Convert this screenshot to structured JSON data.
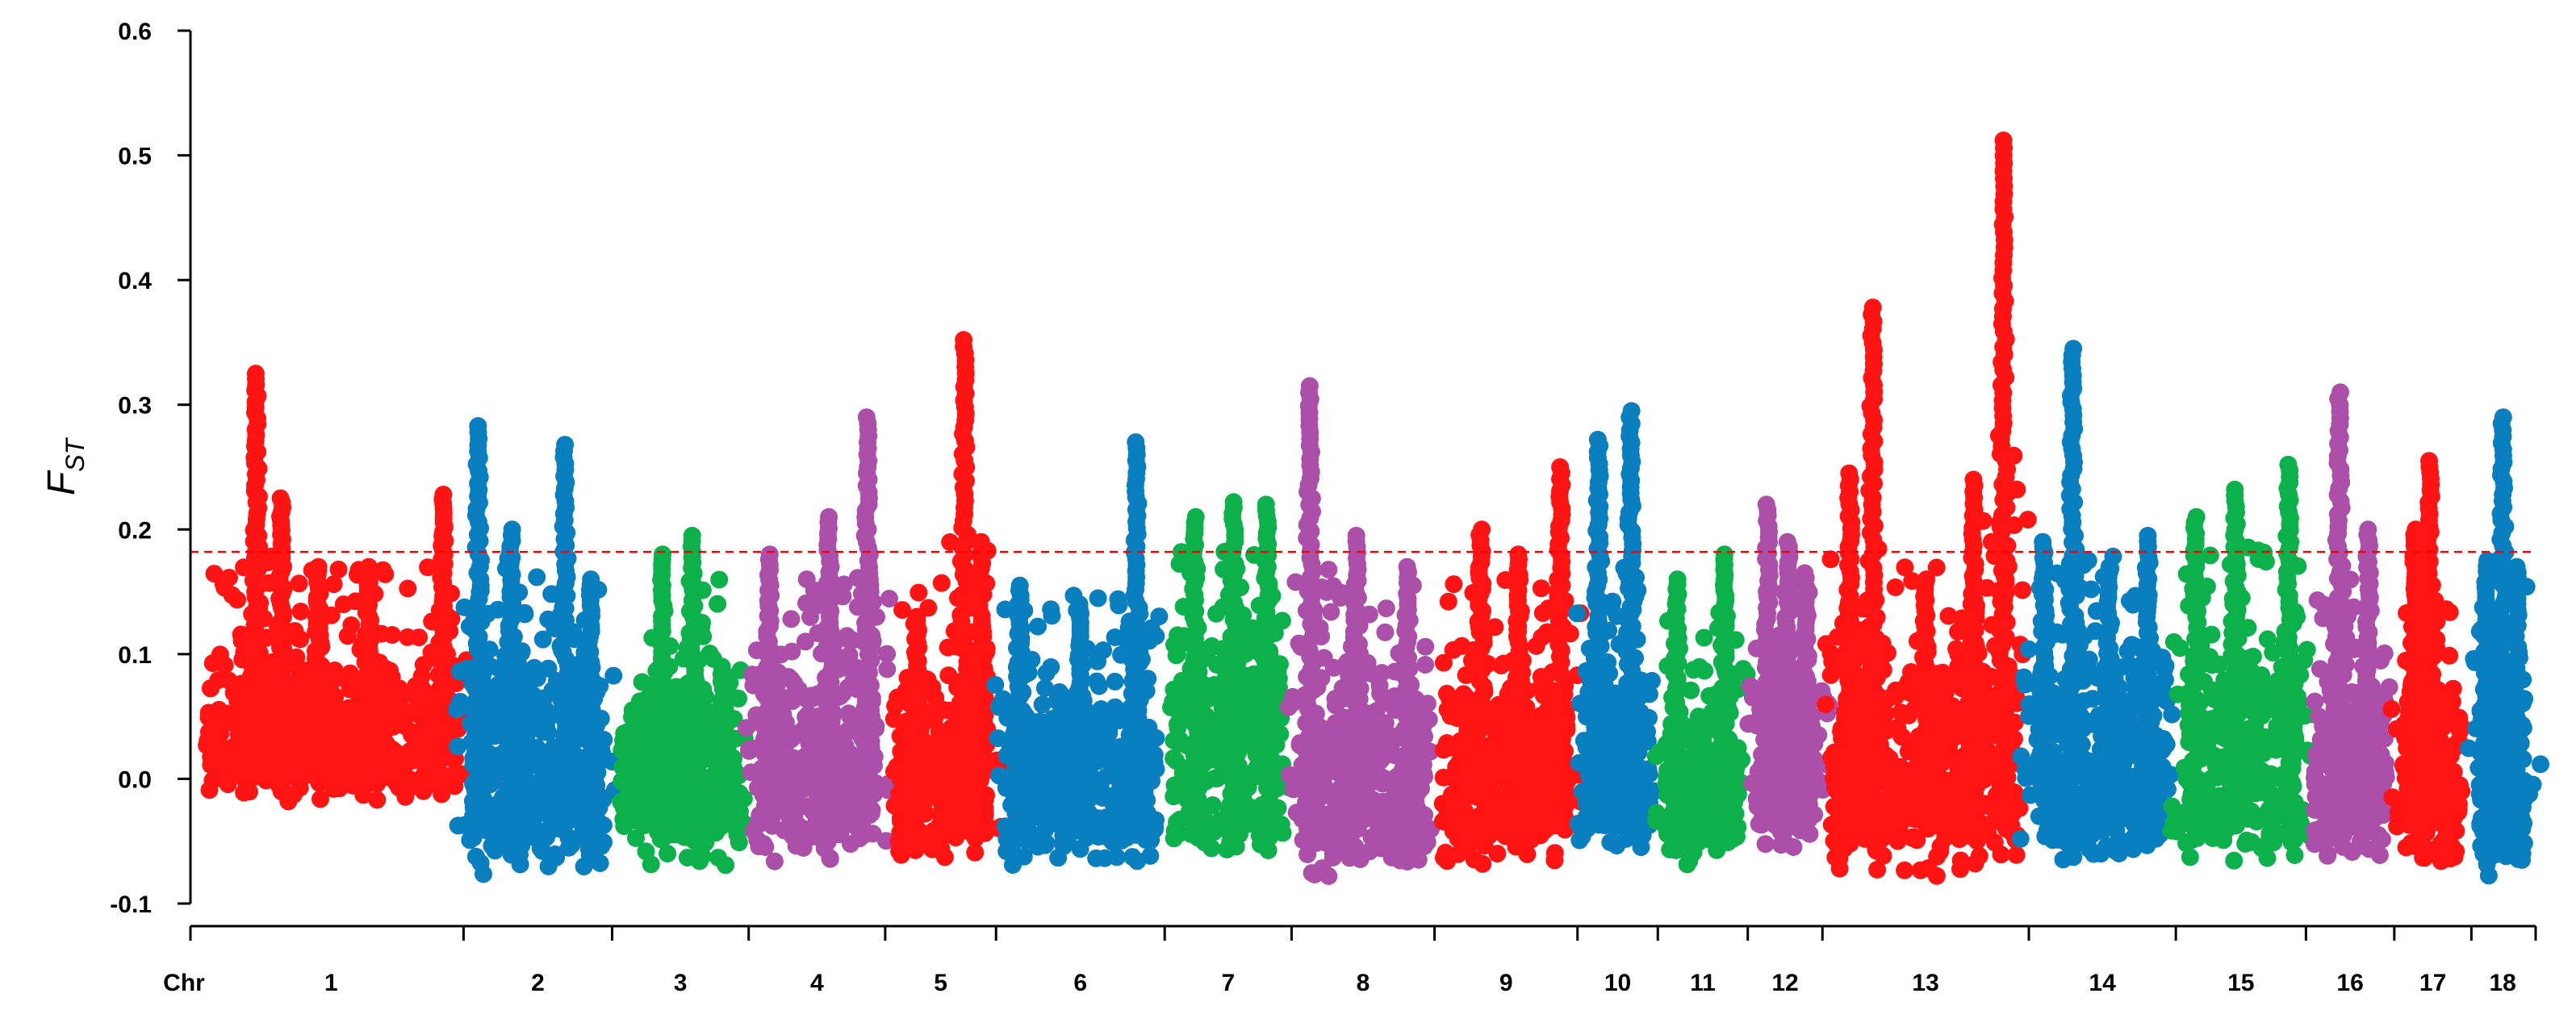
{
  "chart_data": {
    "type": "scatter",
    "title": "",
    "xlabel": "Chr",
    "ylabel": {
      "main": "F",
      "subscript": "ST"
    },
    "ylim": [
      -0.1,
      0.6
    ],
    "yticks": [
      "-0.1",
      "0.0",
      "0.1",
      "0.2",
      "0.3",
      "0.4",
      "0.5",
      "0.6"
    ],
    "threshold": 0.182,
    "threshold_color": "#ff0000",
    "grid": false,
    "legend": "none",
    "palette": [
      "#ff1414",
      "#0a7fbf",
      "#0db14b",
      "#ab4fa9"
    ],
    "chromosomes": [
      {
        "label": "1",
        "color": "#ff1414",
        "base": [
          0.0,
          0.07
        ],
        "peaks": [
          {
            "pos": 0.2,
            "max": 0.325
          },
          {
            "pos": 0.3,
            "max": 0.225
          },
          {
            "pos": 0.45,
            "max": 0.17
          },
          {
            "pos": 0.65,
            "max": 0.17
          },
          {
            "pos": 0.95,
            "max": 0.228
          }
        ]
      },
      {
        "label": "2",
        "color": "#0a7fbf",
        "base": [
          -0.06,
          0.08
        ],
        "peaks": [
          {
            "pos": 0.05,
            "max": 0.283
          },
          {
            "pos": 0.3,
            "max": 0.2
          },
          {
            "pos": 0.7,
            "max": 0.268
          },
          {
            "pos": 0.9,
            "max": 0.16
          }
        ]
      },
      {
        "label": "3",
        "color": "#0db14b",
        "base": [
          -0.05,
          0.06
        ],
        "peaks": [
          {
            "pos": 0.35,
            "max": 0.18
          },
          {
            "pos": 0.6,
            "max": 0.195
          },
          {
            "pos": 0.85,
            "max": 0.09
          }
        ]
      },
      {
        "label": "4",
        "color": "#ab4fa9",
        "base": [
          -0.05,
          0.07
        ],
        "peaks": [
          {
            "pos": 0.1,
            "max": 0.18
          },
          {
            "pos": 0.6,
            "max": 0.21
          },
          {
            "pos": 0.92,
            "max": 0.29
          }
        ]
      },
      {
        "label": "5",
        "color": "#ff1414",
        "base": [
          -0.05,
          0.06
        ],
        "peaks": [
          {
            "pos": 0.25,
            "max": 0.13
          },
          {
            "pos": 0.75,
            "max": 0.352
          },
          {
            "pos": 0.93,
            "max": 0.19
          }
        ]
      },
      {
        "label": "6",
        "color": "#0a7fbf",
        "base": [
          -0.05,
          0.05
        ],
        "peaks": [
          {
            "pos": 0.1,
            "max": 0.155
          },
          {
            "pos": 0.5,
            "max": 0.14
          },
          {
            "pos": 0.87,
            "max": 0.27
          }
        ]
      },
      {
        "label": "7",
        "color": "#0db14b",
        "base": [
          -0.05,
          0.09
        ],
        "peaks": [
          {
            "pos": 0.2,
            "max": 0.21
          },
          {
            "pos": 0.55,
            "max": 0.222
          },
          {
            "pos": 0.85,
            "max": 0.22
          }
        ]
      },
      {
        "label": "8",
        "color": "#ab4fa9",
        "base": [
          -0.06,
          0.06
        ],
        "peaks": [
          {
            "pos": 0.08,
            "max": 0.315
          },
          {
            "pos": 0.45,
            "max": 0.195
          },
          {
            "pos": 0.85,
            "max": 0.17
          }
        ]
      },
      {
        "label": "9",
        "color": "#ff1414",
        "base": [
          -0.05,
          0.06
        ],
        "peaks": [
          {
            "pos": 0.3,
            "max": 0.2
          },
          {
            "pos": 0.6,
            "max": 0.18
          },
          {
            "pos": 0.93,
            "max": 0.25
          }
        ]
      },
      {
        "label": "10",
        "color": "#0a7fbf",
        "base": [
          -0.05,
          0.07
        ],
        "peaks": [
          {
            "pos": 0.2,
            "max": 0.272
          },
          {
            "pos": 0.7,
            "max": 0.295
          }
        ]
      },
      {
        "label": "11",
        "color": "#0db14b",
        "base": [
          -0.05,
          0.04
        ],
        "peaks": [
          {
            "pos": 0.15,
            "max": 0.16
          },
          {
            "pos": 0.8,
            "max": 0.18
          }
        ]
      },
      {
        "label": "12",
        "color": "#ab4fa9",
        "base": [
          -0.04,
          0.06
        ],
        "peaks": [
          {
            "pos": 0.2,
            "max": 0.22
          },
          {
            "pos": 0.55,
            "max": 0.19
          },
          {
            "pos": 0.85,
            "max": 0.165
          }
        ]
      },
      {
        "label": "13",
        "color": "#ff1414",
        "base": [
          -0.06,
          0.08
        ],
        "peaks": [
          {
            "pos": 0.1,
            "max": 0.245
          },
          {
            "pos": 0.22,
            "max": 0.378
          },
          {
            "pos": 0.5,
            "max": 0.16
          },
          {
            "pos": 0.75,
            "max": 0.24
          },
          {
            "pos": 0.91,
            "max": 0.512
          }
        ]
      },
      {
        "label": "14",
        "color": "#0a7fbf",
        "base": [
          -0.05,
          0.08
        ],
        "peaks": [
          {
            "pos": 0.05,
            "max": 0.19
          },
          {
            "pos": 0.27,
            "max": 0.345
          },
          {
            "pos": 0.55,
            "max": 0.17
          },
          {
            "pos": 0.85,
            "max": 0.195
          }
        ]
      },
      {
        "label": "15",
        "color": "#0db14b",
        "base": [
          -0.05,
          0.09
        ],
        "peaks": [
          {
            "pos": 0.1,
            "max": 0.21
          },
          {
            "pos": 0.45,
            "max": 0.232
          },
          {
            "pos": 0.92,
            "max": 0.252
          }
        ]
      },
      {
        "label": "16",
        "color": "#ab4fa9",
        "base": [
          -0.05,
          0.06
        ],
        "peaks": [
          {
            "pos": 0.35,
            "max": 0.31
          },
          {
            "pos": 0.75,
            "max": 0.2
          }
        ]
      },
      {
        "label": "17",
        "color": "#ff1414",
        "base": [
          -0.05,
          0.05
        ],
        "peaks": [
          {
            "pos": 0.2,
            "max": 0.2
          },
          {
            "pos": 0.45,
            "max": 0.255
          }
        ]
      },
      {
        "label": "18",
        "color": "#0a7fbf",
        "base": [
          -0.06,
          0.07
        ],
        "peaks": [
          {
            "pos": 0.15,
            "max": 0.175
          },
          {
            "pos": 0.5,
            "max": 0.29
          },
          {
            "pos": 0.8,
            "max": 0.17
          }
        ]
      }
    ]
  }
}
